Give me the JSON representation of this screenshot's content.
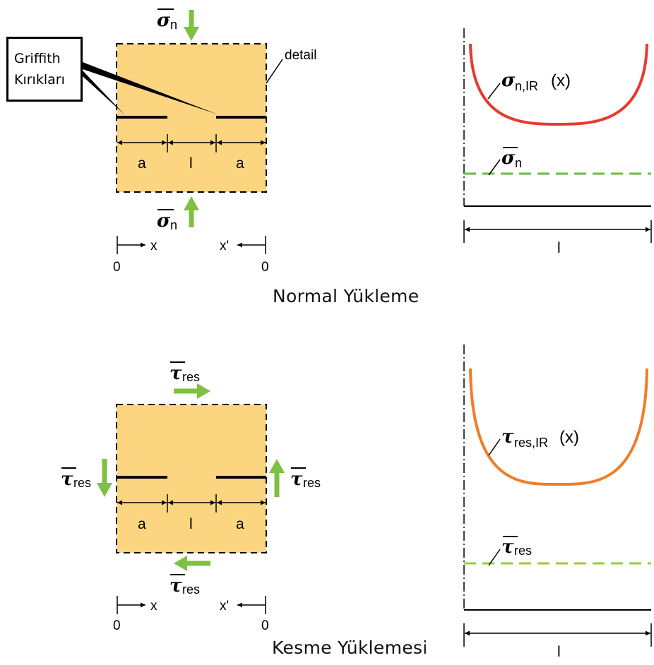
{
  "callout": {
    "line1": "Griffith",
    "line2": "Kırıkları"
  },
  "normal": {
    "caption": "Normal Yükleme",
    "detail_label": "detail",
    "stress_symbol": "σ",
    "stress_sub": "n",
    "dim_a": "a",
    "dim_l": "l",
    "coord_x": "x",
    "coord_xp": "x'",
    "origin_left": "0",
    "origin_right": "0",
    "curve_symbol": "σ",
    "curve_sub": "n,IR",
    "curve_arg": "(x)",
    "mean_symbol": "σ",
    "mean_sub": "n",
    "length_label": "l"
  },
  "shear": {
    "caption": "Kesme Yüklemesi",
    "stress_symbol": "τ",
    "stress_sub": "res",
    "dim_a": "a",
    "dim_l": "l",
    "coord_x": "x",
    "coord_xp": "x'",
    "origin_left": "0",
    "origin_right": "0",
    "curve_symbol": "τ",
    "curve_sub": "res,IR",
    "curve_arg": "(x)",
    "mean_symbol": "τ",
    "mean_sub": "res",
    "length_label": "l"
  },
  "colors": {
    "block_fill": "#fcd581",
    "arrow_green": "#7ec142",
    "curve_red": "#e53b2f",
    "curve_orange": "#ee7d2a",
    "mean_green": "#6dbb45",
    "mean_yellowgreen": "#9ccc3c"
  }
}
